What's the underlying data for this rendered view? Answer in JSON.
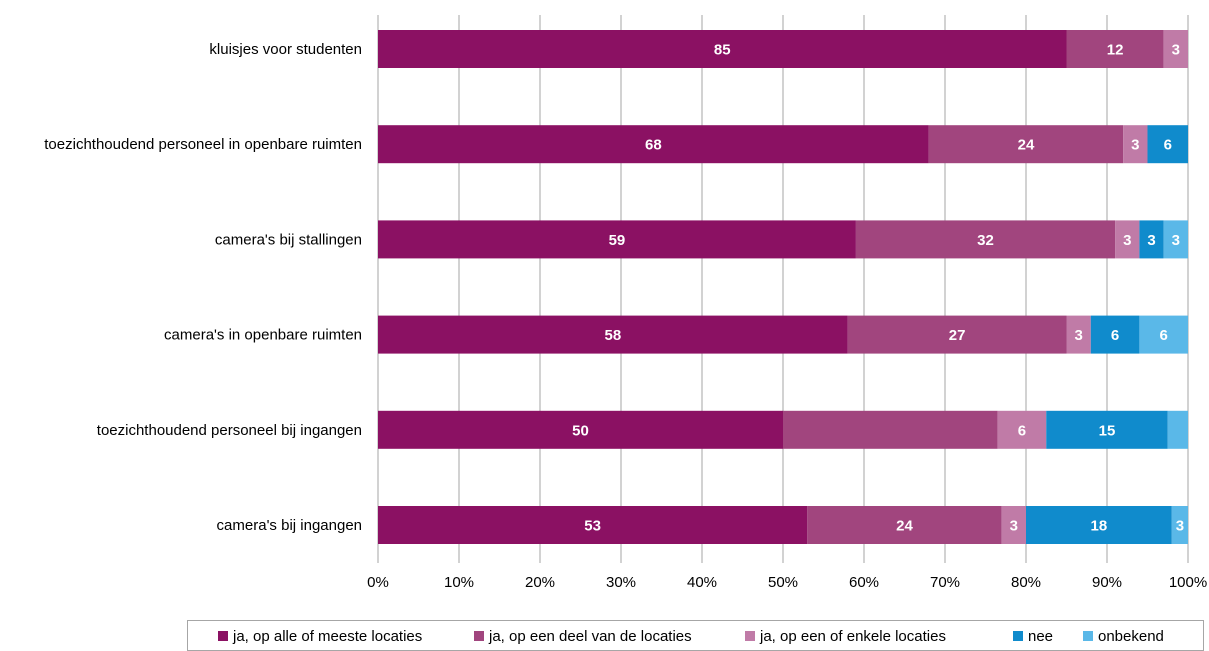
{
  "chart_data": {
    "type": "bar",
    "orientation": "horizontal",
    "stacked": true,
    "categories": [
      "kluisjes voor studenten",
      "toezichthoudend personeel in openbare ruimten",
      "camera's bij stallingen",
      "camera's in openbare ruimten",
      "toezichthoudend personeel bij ingangen",
      "camera's bij ingangen"
    ],
    "series": [
      {
        "name": "ja, op alle of meeste locaties",
        "color": "#8b1163",
        "values": [
          85,
          68,
          59,
          58,
          50,
          53
        ],
        "labels": [
          "85",
          "68",
          "59",
          "58",
          "50",
          "53"
        ]
      },
      {
        "name": "ja, op een deel van de locaties",
        "color": "#a1457e",
        "values": [
          12,
          24,
          32,
          27,
          26.5,
          24
        ],
        "labels": [
          "12",
          "24",
          "32",
          "27",
          "",
          "24"
        ]
      },
      {
        "name": "ja, op een of enkele locaties",
        "color": "#c07ba7",
        "values": [
          3,
          3,
          3,
          3,
          6,
          3
        ],
        "labels": [
          "3",
          "3",
          "3",
          "3",
          "6",
          "3"
        ]
      },
      {
        "name": "nee",
        "color": "#108bcc",
        "values": [
          0,
          6,
          3,
          6,
          15,
          18
        ],
        "labels": [
          "",
          "6",
          "3",
          "6",
          "15",
          "18"
        ]
      },
      {
        "name": "onbekend",
        "color": "#5ab8e8",
        "values": [
          0,
          0,
          3,
          6,
          3,
          3
        ],
        "labels": [
          "",
          "",
          "3",
          "6",
          "",
          "3"
        ]
      }
    ],
    "x_ticks": [
      "0%",
      "10%",
      "20%",
      "30%",
      "40%",
      "50%",
      "60%",
      "70%",
      "80%",
      "90%",
      "100%"
    ],
    "xlim": [
      0,
      100
    ],
    "grid": "vertical",
    "legend_position": "bottom",
    "title": "",
    "xlabel": "",
    "ylabel": ""
  }
}
